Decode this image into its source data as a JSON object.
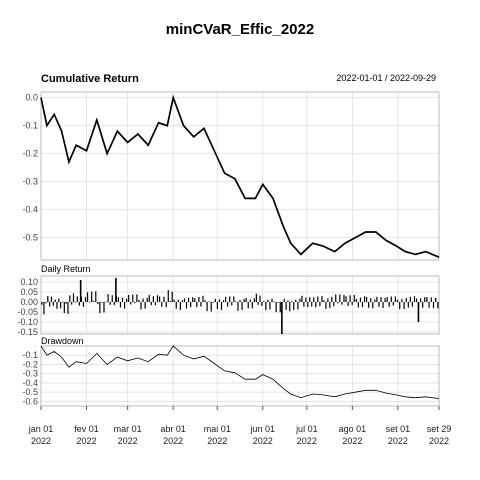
{
  "title": "minCVaR_Effic_2022",
  "cumulative": {
    "title": "Cumulative Return",
    "date_range": "2022-01-01 / 2022-09-29",
    "yticks": [
      "0.0",
      "-0.1",
      "-0.2",
      "-0.3",
      "-0.4",
      "-0.5"
    ]
  },
  "daily": {
    "title": "Daily Return",
    "yticks": [
      "0.10",
      "0.05",
      "0.00",
      "-0.05",
      "-0.10",
      "-0.15"
    ]
  },
  "drawdown": {
    "title": "Drawdown",
    "yticks": [
      "-0.1",
      "-0.2",
      "-0.3",
      "-0.4",
      "-0.5",
      "-0.6"
    ]
  },
  "x_axis": {
    "labels": [
      {
        "month": "jan 01",
        "year": "2022"
      },
      {
        "month": "fev 01",
        "year": "2022"
      },
      {
        "month": "mar 01",
        "year": "2022"
      },
      {
        "month": "abr 01",
        "year": "2022"
      },
      {
        "month": "mai 01",
        "year": "2022"
      },
      {
        "month": "jun 01",
        "year": "2022"
      },
      {
        "month": "jul 01",
        "year": "2022"
      },
      {
        "month": "ago 01",
        "year": "2022"
      },
      {
        "month": "set 01",
        "year": "2022"
      },
      {
        "month": "set 29",
        "year": "2022"
      }
    ]
  },
  "chart_data": {
    "type": "line",
    "dates": [
      "2022-01-01",
      "2022-01-05",
      "2022-01-10",
      "2022-01-15",
      "2022-01-20",
      "2022-01-25",
      "2022-02-01",
      "2022-02-08",
      "2022-02-15",
      "2022-02-22",
      "2022-03-01",
      "2022-03-08",
      "2022-03-15",
      "2022-03-22",
      "2022-03-28",
      "2022-04-01",
      "2022-04-08",
      "2022-04-15",
      "2022-04-22",
      "2022-04-29",
      "2022-05-06",
      "2022-05-13",
      "2022-05-20",
      "2022-05-27",
      "2022-06-01",
      "2022-06-08",
      "2022-06-15",
      "2022-06-20",
      "2022-06-27",
      "2022-07-05",
      "2022-07-12",
      "2022-07-20",
      "2022-07-27",
      "2022-08-03",
      "2022-08-10",
      "2022-08-17",
      "2022-08-24",
      "2022-08-31",
      "2022-09-06",
      "2022-09-13",
      "2022-09-20",
      "2022-09-29"
    ],
    "cumulative_return": [
      0.0,
      -0.1,
      -0.06,
      -0.12,
      -0.23,
      -0.17,
      -0.19,
      -0.08,
      -0.2,
      -0.12,
      -0.16,
      -0.13,
      -0.17,
      -0.09,
      -0.1,
      0.0,
      -0.1,
      -0.14,
      -0.11,
      -0.19,
      -0.27,
      -0.29,
      -0.36,
      -0.36,
      -0.31,
      -0.36,
      -0.46,
      -0.52,
      -0.56,
      -0.52,
      -0.53,
      -0.55,
      -0.52,
      -0.5,
      -0.48,
      -0.48,
      -0.51,
      -0.53,
      -0.55,
      -0.56,
      -0.55,
      -0.57
    ],
    "drawdown": [
      0.0,
      -0.1,
      -0.06,
      -0.12,
      -0.23,
      -0.17,
      -0.19,
      -0.08,
      -0.2,
      -0.12,
      -0.16,
      -0.13,
      -0.17,
      -0.09,
      -0.1,
      0.0,
      -0.1,
      -0.14,
      -0.11,
      -0.19,
      -0.27,
      -0.29,
      -0.36,
      -0.36,
      -0.31,
      -0.36,
      -0.46,
      -0.52,
      -0.56,
      -0.52,
      -0.53,
      -0.55,
      -0.52,
      -0.5,
      -0.48,
      -0.48,
      -0.51,
      -0.53,
      -0.55,
      -0.56,
      -0.55,
      -0.57
    ],
    "daily_return_highlights": [
      {
        "date": "2022-01-28",
        "value": 0.11
      },
      {
        "date": "2022-02-21",
        "value": 0.12
      },
      {
        "date": "2022-06-14",
        "value": -0.16
      },
      {
        "date": "2022-09-15",
        "value": -0.1
      }
    ],
    "ylim_cumulative": [
      -0.58,
      0.02
    ],
    "ylim_daily": [
      -0.16,
      0.13
    ],
    "ylim_drawdown": [
      -0.65,
      0.0
    ]
  }
}
